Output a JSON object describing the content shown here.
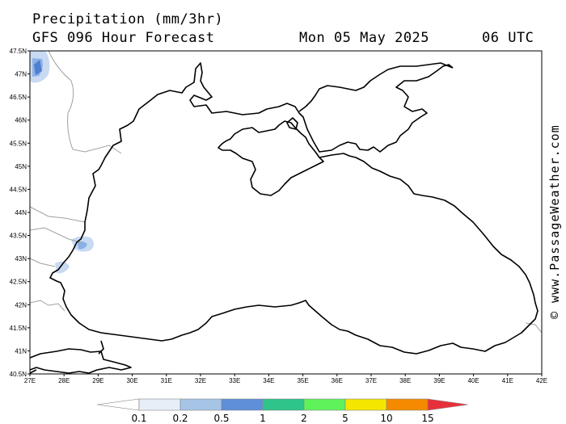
{
  "header": {
    "title": "Precipitation (mm/3hr)",
    "subtitle": "GFS 096 Hour Forecast",
    "date": "Mon 05 May 2025",
    "time": "06 UTC"
  },
  "credit": "© www.PassageWeather.com",
  "axes": {
    "lat_labels": [
      "47.5N",
      "47N",
      "46.5N",
      "46N",
      "45.5N",
      "45N",
      "44.5N",
      "44N",
      "43.5N",
      "43N",
      "42.5N",
      "42N",
      "41.5N",
      "41N",
      "40.5N"
    ],
    "lon_labels": [
      "27E",
      "28E",
      "29E",
      "30E",
      "31E",
      "32E",
      "33E",
      "34E",
      "35E",
      "36E",
      "37E",
      "38E",
      "39E",
      "40E",
      "41E",
      "42E"
    ]
  },
  "legend": {
    "labels": [
      "0.1",
      "0.2",
      "0.5",
      "1",
      "2",
      "5",
      "10",
      "15"
    ],
    "colors": [
      "#ffffff",
      "#e6eef8",
      "#a6c4e6",
      "#5f8fd8",
      "#2ec48a",
      "#5ff25a",
      "#f5e600",
      "#f58a00",
      "#e8303a"
    ]
  },
  "map_colors": {
    "land_outline": "#000000",
    "border": "#a0a0a0",
    "precip_light": "#c8daf2",
    "precip_mid": "#8ab0e4",
    "precip_heavy": "#4f7fd0"
  }
}
